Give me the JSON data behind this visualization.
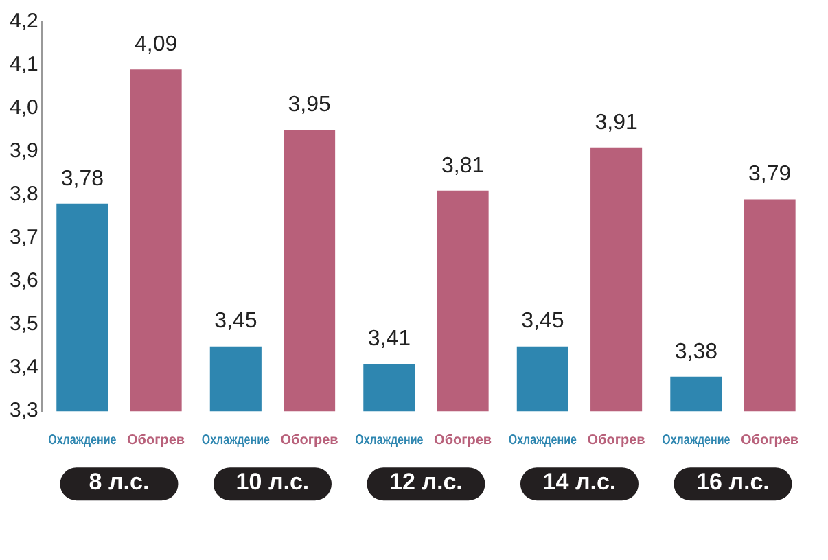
{
  "chart_data": {
    "type": "bar",
    "categories": [
      "8 л.с.",
      "10 л.с.",
      "12 л.с.",
      "14 л.с.",
      "16 л.с."
    ],
    "series": [
      {
        "name": "Охлаждение",
        "color": "#2e86b0",
        "values": [
          3.78,
          3.45,
          3.41,
          3.45,
          3.38
        ],
        "value_labels": [
          "3,78",
          "3,45",
          "3,41",
          "3,45",
          "3,38"
        ]
      },
      {
        "name": "Обогрев",
        "color": "#b8607a",
        "values": [
          4.09,
          3.95,
          3.81,
          3.91,
          3.79
        ],
        "value_labels": [
          "4,09",
          "3,95",
          "3,81",
          "3,91",
          "3,79"
        ]
      }
    ],
    "ylim": [
      3.3,
      4.2
    ],
    "yticks": [
      {
        "value": 3.3,
        "label": "3,3"
      },
      {
        "value": 3.4,
        "label": "3,4"
      },
      {
        "value": 3.5,
        "label": "3,5"
      },
      {
        "value": 3.6,
        "label": "3,6"
      },
      {
        "value": 3.7,
        "label": "3,7"
      },
      {
        "value": 3.8,
        "label": "3,8"
      },
      {
        "value": 3.9,
        "label": "3,9"
      },
      {
        "value": 4.0,
        "label": "4,0"
      },
      {
        "value": 4.1,
        "label": "4,1"
      },
      {
        "value": 4.2,
        "label": "4,2"
      }
    ],
    "grid": false,
    "legend": false
  }
}
